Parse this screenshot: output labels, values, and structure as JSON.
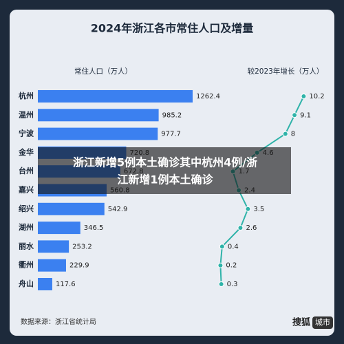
{
  "chart_data": {
    "type": "bar",
    "orientation": "horizontal",
    "title": "2024年浙江各市常住人口及增量",
    "categories": [
      "杭州",
      "温州",
      "宁波",
      "金华",
      "台州",
      "嘉兴",
      "绍兴",
      "湖州",
      "丽水",
      "衢州",
      "舟山"
    ],
    "series": [
      {
        "name": "常住人口（万人）",
        "type": "bar",
        "color": "#3b80f0",
        "values": [
          1262.4,
          985.2,
          977.7,
          720.8,
          672.8,
          560.8,
          542.9,
          346.5,
          253.2,
          229.9,
          117.6
        ]
      },
      {
        "name": "较2023年增长（万人）",
        "type": "line",
        "color": "#2fb3a9",
        "values": [
          10.2,
          9.1,
          8.0,
          4.6,
          1.7,
          2.4,
          3.5,
          2.6,
          0.4,
          0.2,
          0.3
        ]
      }
    ],
    "source": "数据来源：浙江省统计局"
  },
  "overlay": {
    "lines": [
      "浙江新增5例本土确诊其中杭州4例/浙",
      "江新增1例本土确诊"
    ]
  },
  "watermark": {
    "brand": "搜狐",
    "channel": "城市"
  }
}
